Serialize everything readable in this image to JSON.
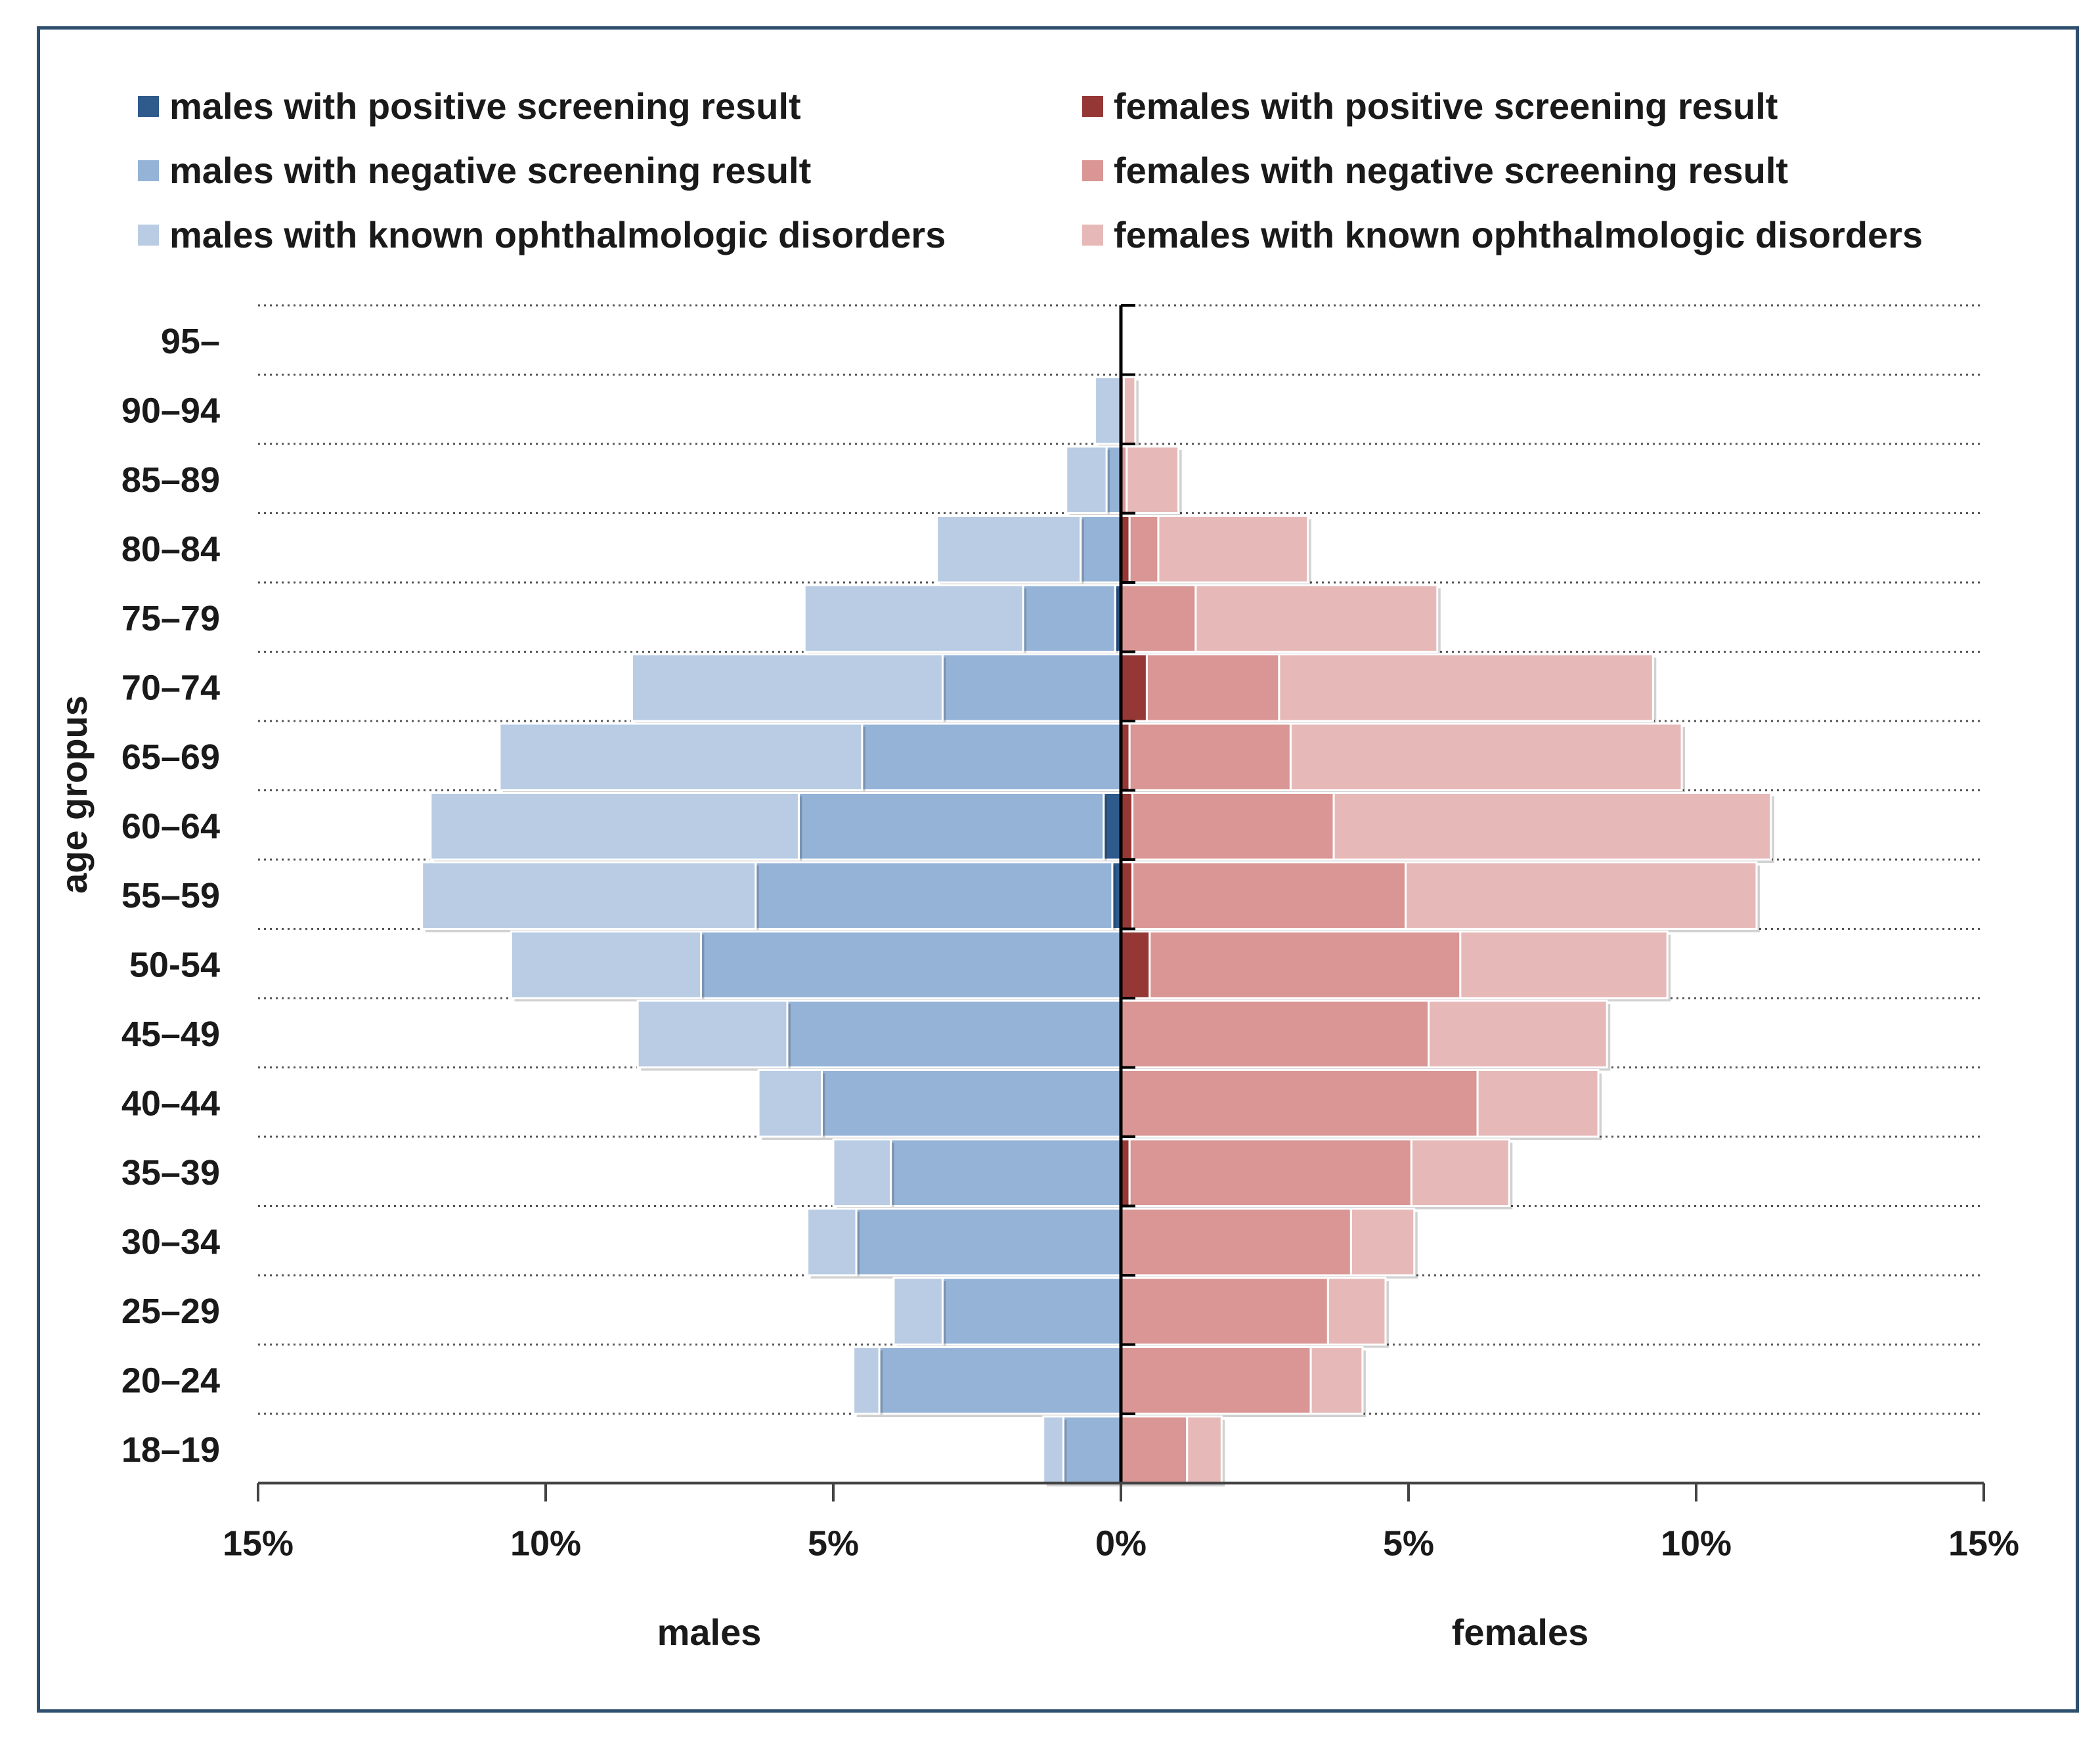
{
  "chart_data": {
    "type": "bar",
    "subtype": "population-pyramid-stacked",
    "title": "",
    "ylabel": "age gropus",
    "xlabel_left": "males",
    "xlabel_right": "females",
    "xlim": [
      -15,
      15
    ],
    "x_ticks": [
      -15,
      -10,
      -5,
      0,
      5,
      10,
      15
    ],
    "x_tick_labels": [
      "15%",
      "10%",
      "5%",
      "0%",
      "5%",
      "10%",
      "15%"
    ],
    "grid": "horizontal dotted between age groups",
    "legend_position": "top",
    "categories": [
      "95–",
      "90–94",
      "85–89",
      "80–84",
      "75–79",
      "70–74",
      "65–69",
      "60–64",
      "55–59",
      "50-54",
      "45–49",
      "40–44",
      "35–39",
      "30–34",
      "25–29",
      "20–24",
      "18–19"
    ],
    "series": [
      {
        "name": "males with positive screening result",
        "side": "left",
        "color": "#2f5a8c",
        "values": [
          0,
          0,
          0,
          0,
          0.1,
          0,
          0,
          0.3,
          0.15,
          0,
          0,
          0,
          0,
          0,
          0,
          0,
          0
        ]
      },
      {
        "name": "males with negative screening result",
        "side": "left",
        "color": "#95b3d7",
        "values": [
          0,
          0,
          0.25,
          0.7,
          1.6,
          3.1,
          4.5,
          5.3,
          6.2,
          7.3,
          5.8,
          5.2,
          4.0,
          4.6,
          3.1,
          4.2,
          1.0
        ]
      },
      {
        "name": "males with known ophthalmologic disorders",
        "side": "left",
        "color": "#b9cce4",
        "values": [
          0,
          0.45,
          0.7,
          2.5,
          3.8,
          5.4,
          6.3,
          6.4,
          5.8,
          3.3,
          2.6,
          1.1,
          1.0,
          0.85,
          0.85,
          0.45,
          0.35
        ]
      },
      {
        "name": "females with positive screening result",
        "side": "right",
        "color": "#953735",
        "values": [
          0,
          0,
          0,
          0.15,
          0,
          0.45,
          0.15,
          0.2,
          0.2,
          0.5,
          0,
          0,
          0.15,
          0,
          0,
          0,
          0
        ]
      },
      {
        "name": "females with negative screening result",
        "side": "right",
        "color": "#d99694",
        "values": [
          0,
          0.05,
          0.1,
          0.5,
          1.3,
          2.3,
          2.8,
          3.5,
          4.75,
          5.4,
          5.35,
          6.2,
          4.9,
          4.0,
          3.6,
          3.3,
          1.15
        ]
      },
      {
        "name": "females with known ophthalmologic disorders",
        "side": "right",
        "color": "#e6b9b8",
        "values": [
          0,
          0.2,
          0.9,
          2.6,
          4.2,
          6.5,
          6.8,
          7.6,
          6.1,
          3.6,
          3.1,
          2.1,
          1.7,
          1.1,
          1.0,
          0.9,
          0.6
        ]
      }
    ]
  }
}
